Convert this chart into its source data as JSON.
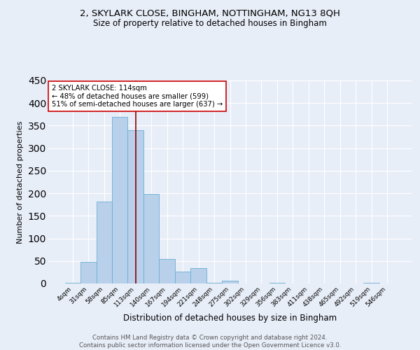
{
  "title_line1": "2, SKYLARK CLOSE, BINGHAM, NOTTINGHAM, NG13 8QH",
  "title_line2": "Size of property relative to detached houses in Bingham",
  "xlabel": "Distribution of detached houses by size in Bingham",
  "ylabel": "Number of detached properties",
  "categories": [
    "4sqm",
    "31sqm",
    "58sqm",
    "85sqm",
    "113sqm",
    "140sqm",
    "167sqm",
    "194sqm",
    "221sqm",
    "248sqm",
    "275sqm",
    "302sqm",
    "329sqm",
    "356sqm",
    "383sqm",
    "411sqm",
    "438sqm",
    "465sqm",
    "492sqm",
    "519sqm",
    "546sqm"
  ],
  "values": [
    2,
    48,
    181,
    370,
    340,
    198,
    54,
    26,
    34,
    2,
    6,
    0,
    0,
    2,
    0,
    0,
    0,
    0,
    0,
    2,
    0
  ],
  "bar_color": "#b8d0ea",
  "bar_edge_color": "#6aaed6",
  "marker_bar_index": 4,
  "marker_line_color": "#8b0000",
  "annotation_text": "2 SKYLARK CLOSE: 114sqm\n← 48% of detached houses are smaller (599)\n51% of semi-detached houses are larger (637) →",
  "annotation_box_color": "white",
  "annotation_box_edge_color": "#cc0000",
  "bg_color": "#e8eef8",
  "plot_bg_color": "#e8eef8",
  "grid_color": "white",
  "footer_text": "Contains HM Land Registry data © Crown copyright and database right 2024.\nContains public sector information licensed under the Open Government Licence v3.0.",
  "ylim": [
    0,
    450
  ],
  "yticks": [
    0,
    50,
    100,
    150,
    200,
    250,
    300,
    350,
    400,
    450
  ]
}
